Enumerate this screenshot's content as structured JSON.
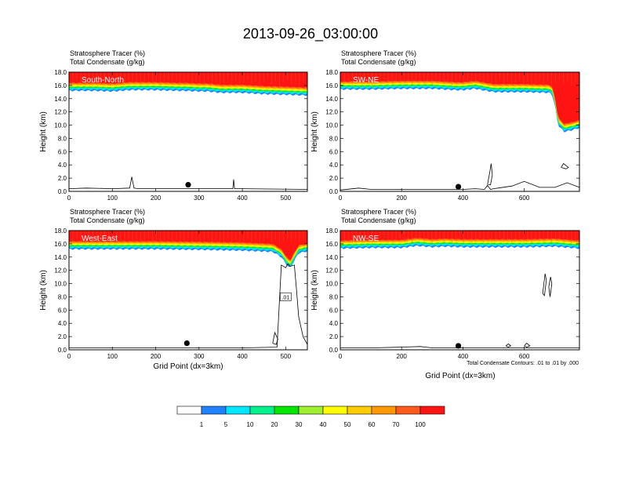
{
  "figure_title": "2013-09-26_03:00:00",
  "panel_label_line1": "Stratosphere Tracer   (%)",
  "panel_label_line2": "Total Condensate   (g/kg)",
  "ylabel": "Height (km)",
  "xlabel": "Grid Point (dx=3km)",
  "contour_note": "Total Condensate Contours: .01 to .01 by .000",
  "colors": {
    "strat_levels": [
      "#ffffff",
      "#1e82ff",
      "#00e6ff",
      "#00f08c",
      "#00e600",
      "#a0f032",
      "#ffff00",
      "#ffcc00",
      "#ff9900",
      "#ff5a1e",
      "#ff1414"
    ],
    "contour": "#000000",
    "marker": "#000000"
  },
  "colorbar": {
    "labels": [
      "1",
      "5",
      "10",
      "20",
      "30",
      "40",
      "50",
      "60",
      "70",
      "100"
    ]
  },
  "chart_data": [
    {
      "type": "heatmap",
      "name": "South-North",
      "xlim": [
        0,
        550
      ],
      "ylim": [
        0,
        18
      ],
      "xticks": [
        "0",
        "100",
        "200",
        "300",
        "400",
        "500"
      ],
      "yticks": [
        "0.0",
        "2.0",
        "4.0",
        "6.0",
        "8.0",
        "10.0",
        "12.0",
        "14.0",
        "16.0",
        "18.0"
      ],
      "tropopause_x": [
        0,
        60,
        100,
        140,
        200,
        250,
        270,
        300,
        320,
        350,
        400,
        450,
        500,
        550
      ],
      "tropopause_km": [
        15.2,
        15.2,
        15.1,
        15.3,
        15.3,
        15.2,
        15.2,
        15.1,
        15.1,
        14.9,
        14.9,
        14.7,
        14.6,
        14.5
      ],
      "marker": {
        "x": 275,
        "y": 1.0
      },
      "contours": [
        {
          "x": [
            0,
            40,
            100,
            140,
            145,
            150,
            160,
            250,
            320,
            378,
            380,
            382,
            400,
            550
          ],
          "y": [
            0.4,
            0.5,
            0.4,
            0.5,
            2.2,
            0.5,
            0.4,
            0.4,
            0.4,
            0.4,
            1.8,
            0.4,
            0.4,
            0.3
          ]
        }
      ]
    },
    {
      "type": "heatmap",
      "name": "SW-NE",
      "xlim": [
        0,
        780
      ],
      "ylim": [
        0,
        18
      ],
      "xticks": [
        "0",
        "200",
        "400",
        "600"
      ],
      "yticks": [
        "0.0",
        "2.0",
        "4.0",
        "6.0",
        "8.0",
        "10.0",
        "12.0",
        "14.0",
        "16.0",
        "18.0"
      ],
      "tropopause_x": [
        0,
        100,
        200,
        300,
        380,
        400,
        440,
        500,
        600,
        680,
        690,
        700,
        710,
        730,
        760,
        780
      ],
      "tropopause_km": [
        15.4,
        15.4,
        15.5,
        15.5,
        15.3,
        15.3,
        15.5,
        15.0,
        15.0,
        14.9,
        14.7,
        13.0,
        10.0,
        9.0,
        9.3,
        9.6
      ],
      "marker": {
        "x": 385,
        "y": 0.7
      },
      "contours": [
        {
          "x": [
            0,
            60,
            100,
            200,
            400,
            440,
            470,
            480,
            490,
            500,
            560,
            600,
            650,
            700,
            740,
            780
          ],
          "y": [
            0.2,
            0.5,
            0.3,
            0.3,
            0.3,
            0.4,
            0.3,
            0.9,
            0.3,
            0.4,
            0.8,
            1.5,
            0.6,
            0.6,
            1.3,
            0.6
          ]
        },
        {
          "x": [
            480,
            488,
            492,
            496,
            490,
            482
          ],
          "y": [
            1.0,
            3.0,
            4.2,
            2.5,
            1.0,
            1.0
          ]
        },
        {
          "x": [
            720,
            728,
            736,
            744,
            736,
            722
          ],
          "y": [
            3.6,
            4.2,
            3.9,
            3.6,
            3.4,
            3.6
          ]
        }
      ]
    },
    {
      "type": "heatmap",
      "name": "West-East",
      "xlim": [
        0,
        550
      ],
      "ylim": [
        0,
        18
      ],
      "xticks": [
        "0",
        "100",
        "200",
        "300",
        "400",
        "500"
      ],
      "yticks": [
        "0.0",
        "2.0",
        "4.0",
        "6.0",
        "8.0",
        "10.0",
        "12.0",
        "14.0",
        "16.0",
        "18.0"
      ],
      "tropopause_x": [
        0,
        100,
        200,
        320,
        400,
        470,
        490,
        500,
        510,
        520,
        530,
        550
      ],
      "tropopause_km": [
        15.2,
        15.2,
        15.2,
        15.1,
        15.0,
        14.8,
        14.0,
        13.0,
        12.3,
        13.5,
        14.6,
        14.9
      ],
      "marker": {
        "x": 272,
        "y": 1.0
      },
      "contour_label": ".01",
      "contour_label_pos": {
        "x": 500,
        "y": 8.0
      },
      "contours": [
        {
          "x": [
            0,
            100,
            200,
            300,
            400,
            480,
            490,
            500,
            505,
            510,
            520,
            525,
            530,
            540,
            550
          ],
          "y": [
            0.3,
            0.3,
            0.3,
            0.3,
            0.3,
            0.4,
            12.8,
            12.4,
            13.0,
            12.6,
            12.8,
            9.0,
            5.0,
            2.0,
            0.8
          ]
        },
        {
          "x": [
            470,
            475,
            482,
            478,
            470
          ],
          "y": [
            1.0,
            2.6,
            1.6,
            0.8,
            1.0
          ]
        }
      ]
    },
    {
      "type": "heatmap",
      "name": "NW-SE",
      "xlim": [
        0,
        780
      ],
      "ylim": [
        0,
        18
      ],
      "xticks": [
        "0",
        "200",
        "400",
        "600"
      ],
      "yticks": [
        "0.0",
        "2.0",
        "4.0",
        "6.0",
        "8.0",
        "10.0",
        "12.0",
        "14.0",
        "16.0",
        "18.0"
      ],
      "tropopause_x": [
        0,
        100,
        200,
        250,
        300,
        340,
        400,
        500,
        600,
        700,
        780
      ],
      "tropopause_km": [
        15.3,
        15.4,
        15.4,
        15.7,
        15.5,
        15.6,
        15.5,
        15.5,
        15.5,
        15.6,
        15.3
      ],
      "marker": {
        "x": 385,
        "y": 0.6
      },
      "contours": [
        {
          "x": [
            0,
            100,
            200,
            260,
            300,
            400,
            500,
            600,
            700,
            780
          ],
          "y": [
            0.3,
            0.3,
            0.4,
            0.5,
            0.3,
            0.3,
            0.3,
            0.3,
            0.3,
            0.3
          ]
        },
        {
          "x": [
            660,
            668,
            672,
            666,
            660
          ],
          "y": [
            8.5,
            11.5,
            10.5,
            8.2,
            8.5
          ]
        },
        {
          "x": [
            680,
            686,
            690,
            684,
            680
          ],
          "y": [
            9.5,
            11.0,
            10.0,
            8.0,
            9.5
          ]
        },
        {
          "x": [
            540,
            548,
            556,
            548,
            540
          ],
          "y": [
            0.6,
            0.9,
            0.6,
            0.4,
            0.6
          ]
        },
        {
          "x": [
            600,
            608,
            618,
            608,
            600
          ],
          "y": [
            0.6,
            1.0,
            0.6,
            0.4,
            0.6
          ]
        }
      ]
    }
  ]
}
